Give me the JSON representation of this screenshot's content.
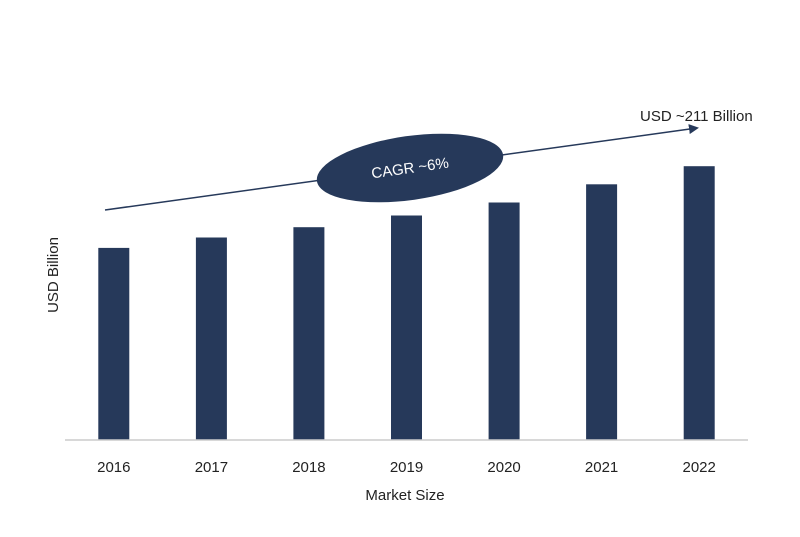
{
  "chart_data": {
    "type": "bar",
    "title": "",
    "xlabel": "Market Size",
    "ylabel": "USD Billion",
    "categories": [
      "2016",
      "2017",
      "2018",
      "2019",
      "2020",
      "2021",
      "2022"
    ],
    "values": [
      148,
      156,
      164,
      173,
      183,
      197,
      211
    ],
    "ylim": [
      0,
      225
    ],
    "grid": false,
    "legend": "none",
    "bar_color": "#26395a",
    "annotations": {
      "end_value_label": "USD ~211 Billion",
      "cagr_label": "CAGR ~6%"
    }
  }
}
